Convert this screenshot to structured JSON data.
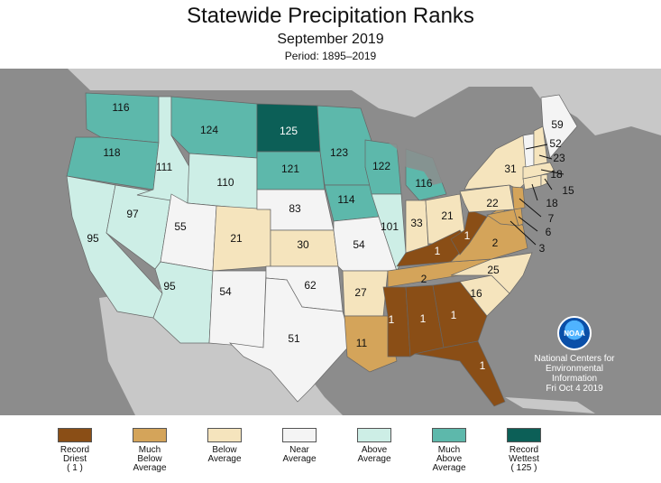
{
  "header": {
    "title": "Statewide Precipitation Ranks",
    "subtitle": "September 2019",
    "period": "Period: 1895–2019"
  },
  "colors": {
    "record_driest": "#8a4e16",
    "much_below": "#d4a45a",
    "below": "#f5e4bd",
    "near": "#f4f4f4",
    "above": "#cdeee6",
    "much_above": "#5db8ab",
    "record_wettest": "#0c5f57",
    "ocean": "#8c8c8c",
    "land": "#c8c8c8"
  },
  "states": {
    "WA": {
      "rank": "116",
      "cat": "much_above"
    },
    "OR": {
      "rank": "118",
      "cat": "much_above"
    },
    "CA": {
      "rank": "95",
      "cat": "above"
    },
    "NV": {
      "rank": "97",
      "cat": "above"
    },
    "ID": {
      "rank": "111",
      "cat": "above"
    },
    "MT": {
      "rank": "124",
      "cat": "much_above"
    },
    "WY": {
      "rank": "110",
      "cat": "above"
    },
    "UT": {
      "rank": "55",
      "cat": "near"
    },
    "AZ": {
      "rank": "95",
      "cat": "above"
    },
    "CO": {
      "rank": "21",
      "cat": "below"
    },
    "NM": {
      "rank": "54",
      "cat": "near"
    },
    "ND": {
      "rank": "125",
      "cat": "record_wettest"
    },
    "SD": {
      "rank": "121",
      "cat": "much_above"
    },
    "NE": {
      "rank": "83",
      "cat": "near"
    },
    "KS": {
      "rank": "30",
      "cat": "below"
    },
    "OK": {
      "rank": "62",
      "cat": "near"
    },
    "TX": {
      "rank": "51",
      "cat": "near"
    },
    "MN": {
      "rank": "123",
      "cat": "much_above"
    },
    "IA": {
      "rank": "114",
      "cat": "much_above"
    },
    "MO": {
      "rank": "54",
      "cat": "near"
    },
    "AR": {
      "rank": "27",
      "cat": "below"
    },
    "LA": {
      "rank": "11",
      "cat": "much_below"
    },
    "WI": {
      "rank": "122",
      "cat": "much_above"
    },
    "IL": {
      "rank": "101",
      "cat": "above"
    },
    "MI": {
      "rank": "116",
      "cat": "much_above"
    },
    "IN": {
      "rank": "33",
      "cat": "below"
    },
    "OH": {
      "rank": "21",
      "cat": "below"
    },
    "KY": {
      "rank": "1",
      "cat": "record_driest"
    },
    "TN": {
      "rank": "2",
      "cat": "much_below"
    },
    "MS": {
      "rank": "1",
      "cat": "record_driest"
    },
    "AL": {
      "rank": "1",
      "cat": "record_driest"
    },
    "GA": {
      "rank": "1",
      "cat": "record_driest"
    },
    "FL": {
      "rank": "1",
      "cat": "record_driest"
    },
    "SC": {
      "rank": "16",
      "cat": "below"
    },
    "NC": {
      "rank": "25",
      "cat": "below"
    },
    "VA": {
      "rank": "2",
      "cat": "much_below"
    },
    "WV": {
      "rank": "1",
      "cat": "record_driest"
    },
    "PA": {
      "rank": "22",
      "cat": "below"
    },
    "NY": {
      "rank": "31",
      "cat": "below"
    },
    "ME": {
      "rank": "59",
      "cat": "near"
    },
    "VT": {
      "rank": "52",
      "cat": "near"
    },
    "NH": {
      "rank": "23",
      "cat": "below"
    },
    "MA": {
      "rank": "18",
      "cat": "below"
    },
    "RI": {
      "rank": "15",
      "cat": "below"
    },
    "CT": {
      "rank": "18",
      "cat": "below"
    },
    "NJ": {
      "rank": "7",
      "cat": "much_below"
    },
    "DE": {
      "rank": "6",
      "cat": "much_below"
    },
    "MD": {
      "rank": "3",
      "cat": "much_below"
    }
  },
  "legend": [
    {
      "key": "record_driest",
      "label": "Record\nDriest\n( 1 )"
    },
    {
      "key": "much_below",
      "label": "Much\nBelow\nAverage"
    },
    {
      "key": "below",
      "label": "Below\nAverage"
    },
    {
      "key": "near",
      "label": "Near\nAverage"
    },
    {
      "key": "above",
      "label": "Above\nAverage"
    },
    {
      "key": "much_above",
      "label": "Much\nAbove\nAverage"
    },
    {
      "key": "record_wettest",
      "label": "Record\nWettest\n( 125 )"
    }
  ],
  "credit": {
    "logo_text": "NOAA",
    "line1": "National Centers for",
    "line2": "Environmental",
    "line3": "Information",
    "line4": "Fri Oct  4 2019"
  }
}
